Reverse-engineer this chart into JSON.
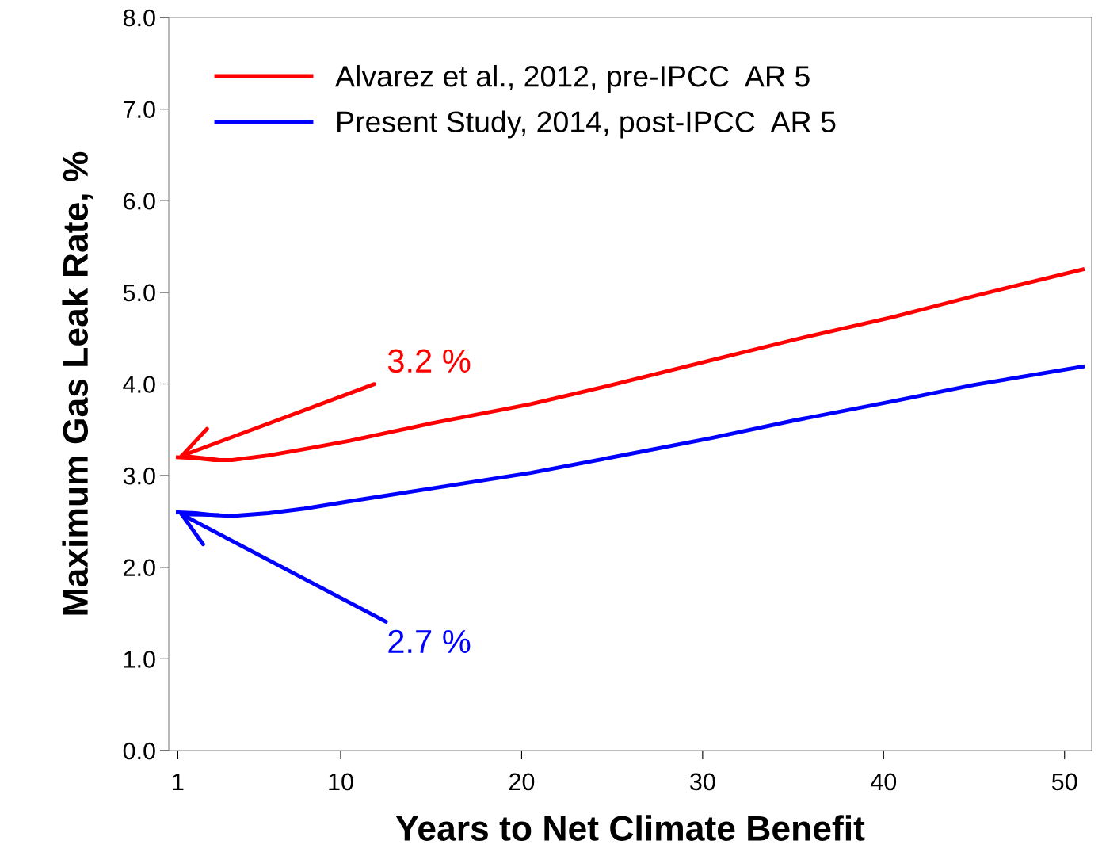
{
  "chart_data": {
    "type": "line",
    "xlabel": "Years to Net Climate Benefit",
    "ylabel": "Maximum Gas Leak Rate, %",
    "xlim": [
      0.5,
      51.5
    ],
    "xticks": [
      1,
      10,
      20,
      30,
      40,
      50
    ],
    "ylim": [
      0,
      8
    ],
    "yticks": [
      {
        "value": 0,
        "label": "0.0"
      },
      {
        "value": 1,
        "label": "1.0"
      },
      {
        "value": 2,
        "label": "2.0"
      },
      {
        "value": 3,
        "label": "3.0"
      },
      {
        "value": 4,
        "label": "4.0"
      },
      {
        "value": 5,
        "label": "5.0"
      },
      {
        "value": 6,
        "label": "6.0"
      },
      {
        "value": 7,
        "label": "7.0"
      },
      {
        "value": 8,
        "label": "8.0"
      }
    ],
    "grid": false,
    "legend": "top left",
    "marker": "none",
    "line_style": "solid",
    "series": [
      {
        "name": "Alvarez et al., 2012, pre-IPCC  AR 5",
        "color": "#ff0000",
        "x": [
          1,
          2,
          3,
          4,
          6,
          8,
          10.5,
          15,
          20.5,
          25,
          30.5,
          35,
          40.5,
          45,
          51
        ],
        "values": [
          3.2,
          3.19,
          3.17,
          3.17,
          3.22,
          3.29,
          3.38,
          3.57,
          3.78,
          3.99,
          4.26,
          4.48,
          4.73,
          4.96,
          5.25
        ]
      },
      {
        "name": "Present Study, 2014, post-IPCC  AR 5",
        "color": "#0000ff",
        "x": [
          1,
          2,
          3,
          4,
          6,
          8,
          10.5,
          15,
          20.5,
          25,
          30.5,
          35,
          40.5,
          45,
          51
        ],
        "values": [
          2.6,
          2.59,
          2.57,
          2.56,
          2.59,
          2.64,
          2.72,
          2.86,
          3.03,
          3.2,
          3.41,
          3.6,
          3.81,
          3.99,
          4.19
        ]
      }
    ],
    "annotations": [
      {
        "text": "3.2 %",
        "x": 1,
        "y": 3.2
      },
      {
        "text": "2.7 %",
        "x": 1,
        "y": 2.6
      }
    ]
  }
}
